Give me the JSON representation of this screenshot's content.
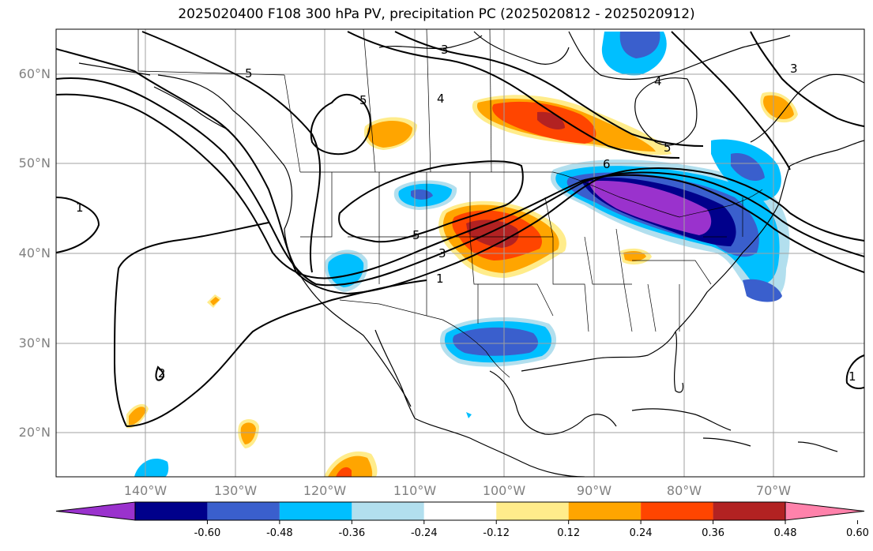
{
  "title": "2025020400 F108 300 hPa PV, precipitation PC (2025020812 - 2025020912)",
  "map": {
    "lat_labels": [
      "60°N",
      "50°N",
      "40°N",
      "30°N",
      "20°N"
    ],
    "lon_labels": [
      "140°W",
      "130°W",
      "120°W",
      "110°W",
      "100°W",
      "90°W",
      "80°W",
      "70°W"
    ],
    "gridline_color": "#a0a0a0",
    "contour_color": "#000000",
    "pv_contour_labels": [
      "5",
      "3",
      "4",
      "1",
      "5",
      "3",
      "1",
      "4",
      "5",
      "2",
      "1",
      "6",
      "5",
      "3"
    ]
  },
  "colorbar": {
    "colors": [
      "#9a32cd",
      "#00008b",
      "#3a5fcd",
      "#00bfff",
      "#b2dfee",
      "#ffffff",
      "#ffec8b",
      "#ffa500",
      "#ff4500",
      "#b22222",
      "#ff82ab"
    ],
    "tick_labels": [
      "-0.60",
      "-0.48",
      "-0.36",
      "-0.24",
      "-0.12",
      "0.12",
      "0.24",
      "0.36",
      "0.48",
      "0.60"
    ]
  }
}
